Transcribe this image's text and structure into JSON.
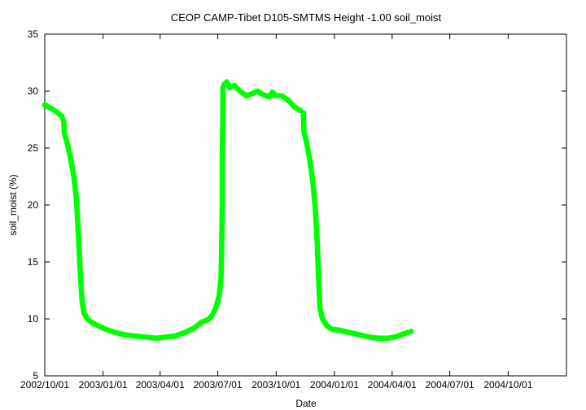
{
  "chart_data": {
    "type": "scatter",
    "title": "CEOP CAMP-Tibet D105-SMTMS Height -1.00 soil_moist",
    "xlabel": "Date",
    "ylabel": "soil_moist (%)",
    "xlim": [
      "2002-10-01",
      "2005-01-01"
    ],
    "ylim": [
      5,
      35
    ],
    "x_ticks": [
      "2002/10/01",
      "2003/01/01",
      "2003/04/01",
      "2003/07/01",
      "2003/10/01",
      "2004/01/01",
      "2004/04/01",
      "2004/07/01",
      "2004/10/01"
    ],
    "y_ticks": [
      5,
      10,
      15,
      20,
      25,
      30,
      35
    ],
    "grid": false,
    "series": [
      {
        "color": "#00ff00",
        "points": [
          [
            "2002-10-01",
            28.8
          ],
          [
            "2002-10-07",
            28.6
          ],
          [
            "2002-10-14",
            28.4
          ],
          [
            "2002-10-21",
            28.1
          ],
          [
            "2002-10-28",
            27.8
          ],
          [
            "2002-10-31",
            27.3
          ],
          [
            "2002-11-01",
            26.3
          ],
          [
            "2002-11-06",
            25.3
          ],
          [
            "2002-11-11",
            24.0
          ],
          [
            "2002-11-16",
            22.5
          ],
          [
            "2002-11-20",
            20.5
          ],
          [
            "2002-11-23",
            17.5
          ],
          [
            "2002-11-26",
            14.0
          ],
          [
            "2002-11-29",
            11.5
          ],
          [
            "2002-12-02",
            10.5
          ],
          [
            "2002-12-07",
            10.0
          ],
          [
            "2002-12-14",
            9.7
          ],
          [
            "2002-12-24",
            9.4
          ],
          [
            "2003-01-05",
            9.1
          ],
          [
            "2003-01-20",
            8.8
          ],
          [
            "2003-02-05",
            8.6
          ],
          [
            "2003-02-20",
            8.5
          ],
          [
            "2003-03-10",
            8.4
          ],
          [
            "2003-03-25",
            8.3
          ],
          [
            "2003-04-10",
            8.4
          ],
          [
            "2003-04-25",
            8.5
          ],
          [
            "2003-05-10",
            8.8
          ],
          [
            "2003-05-25",
            9.2
          ],
          [
            "2003-06-05",
            9.7
          ],
          [
            "2003-06-15",
            9.9
          ],
          [
            "2003-06-22",
            10.3
          ],
          [
            "2003-06-28",
            11.0
          ],
          [
            "2003-07-03",
            12.0
          ],
          [
            "2003-07-06",
            13.5
          ],
          [
            "2003-07-07",
            16.0
          ],
          [
            "2003-07-08",
            20.0
          ],
          [
            "2003-07-08",
            24.0
          ],
          [
            "2003-07-09",
            28.0
          ],
          [
            "2003-07-09",
            30.3
          ],
          [
            "2003-07-11",
            30.6
          ],
          [
            "2003-07-15",
            30.8
          ],
          [
            "2003-07-20",
            30.3
          ],
          [
            "2003-07-27",
            30.5
          ],
          [
            "2003-08-05",
            30.0
          ],
          [
            "2003-08-15",
            29.6
          ],
          [
            "2003-08-25",
            29.8
          ],
          [
            "2003-09-01",
            30.0
          ],
          [
            "2003-09-10",
            29.7
          ],
          [
            "2003-09-20",
            29.5
          ],
          [
            "2003-09-25",
            29.9
          ],
          [
            "2003-10-01",
            29.6
          ],
          [
            "2003-10-10",
            29.6
          ],
          [
            "2003-10-20",
            29.2
          ],
          [
            "2003-10-30",
            28.6
          ],
          [
            "2003-11-08",
            28.3
          ],
          [
            "2003-11-13",
            28.1
          ],
          [
            "2003-11-14",
            26.4
          ],
          [
            "2003-11-18",
            25.5
          ],
          [
            "2003-11-23",
            24.0
          ],
          [
            "2003-11-28",
            22.0
          ],
          [
            "2003-12-02",
            19.5
          ],
          [
            "2003-12-05",
            16.5
          ],
          [
            "2003-12-07",
            13.5
          ],
          [
            "2003-12-09",
            11.0
          ],
          [
            "2003-12-13",
            10.0
          ],
          [
            "2003-12-20",
            9.4
          ],
          [
            "2003-12-28",
            9.1
          ],
          [
            "2004-01-10",
            9.0
          ],
          [
            "2004-01-25",
            8.8
          ],
          [
            "2004-02-10",
            8.6
          ],
          [
            "2004-02-25",
            8.4
          ],
          [
            "2004-03-10",
            8.3
          ],
          [
            "2004-03-25",
            8.3
          ],
          [
            "2004-04-05",
            8.4
          ],
          [
            "2004-04-15",
            8.6
          ],
          [
            "2004-04-25",
            8.8
          ],
          [
            "2004-05-01",
            8.9
          ]
        ]
      }
    ]
  }
}
